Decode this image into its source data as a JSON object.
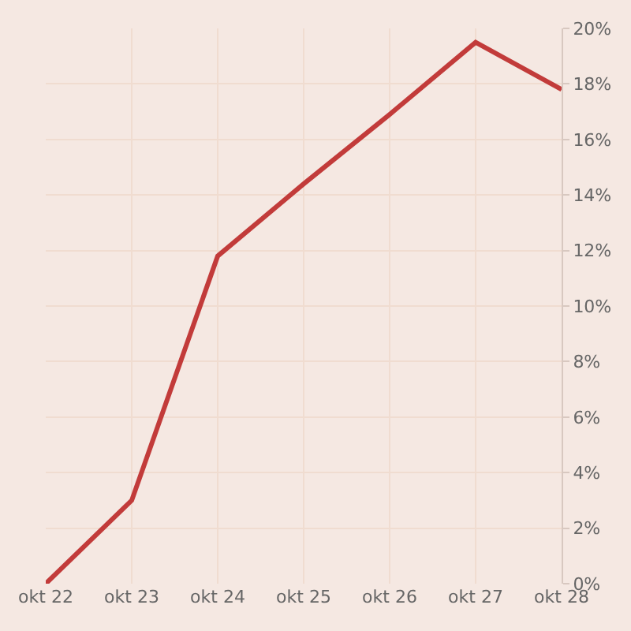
{
  "chart_data": {
    "type": "line",
    "categories": [
      "okt 22",
      "okt 23",
      "okt 24",
      "okt 25",
      "okt 26",
      "okt 27",
      "okt 28"
    ],
    "series": [
      {
        "color": "#c23b3a",
        "values": [
          0,
          3,
          11.8,
          14.4,
          16.9,
          19.5,
          17.8
        ]
      }
    ],
    "ylim": [
      0,
      20
    ],
    "yticks": [
      {
        "value": 0,
        "label": "0%"
      },
      {
        "value": 2,
        "label": "2%"
      },
      {
        "value": 4,
        "label": "4%"
      },
      {
        "value": 6,
        "label": "6%"
      },
      {
        "value": 8,
        "label": "8%"
      },
      {
        "value": 10,
        "label": "10%"
      },
      {
        "value": 12,
        "label": "12%"
      },
      {
        "value": 14,
        "label": "14%"
      },
      {
        "value": 16,
        "label": "16%"
      },
      {
        "value": 18,
        "label": "18%"
      },
      {
        "value": 20,
        "label": "20%"
      }
    ],
    "grid": true,
    "legend": false,
    "marker": "none",
    "line_style": "solid"
  }
}
